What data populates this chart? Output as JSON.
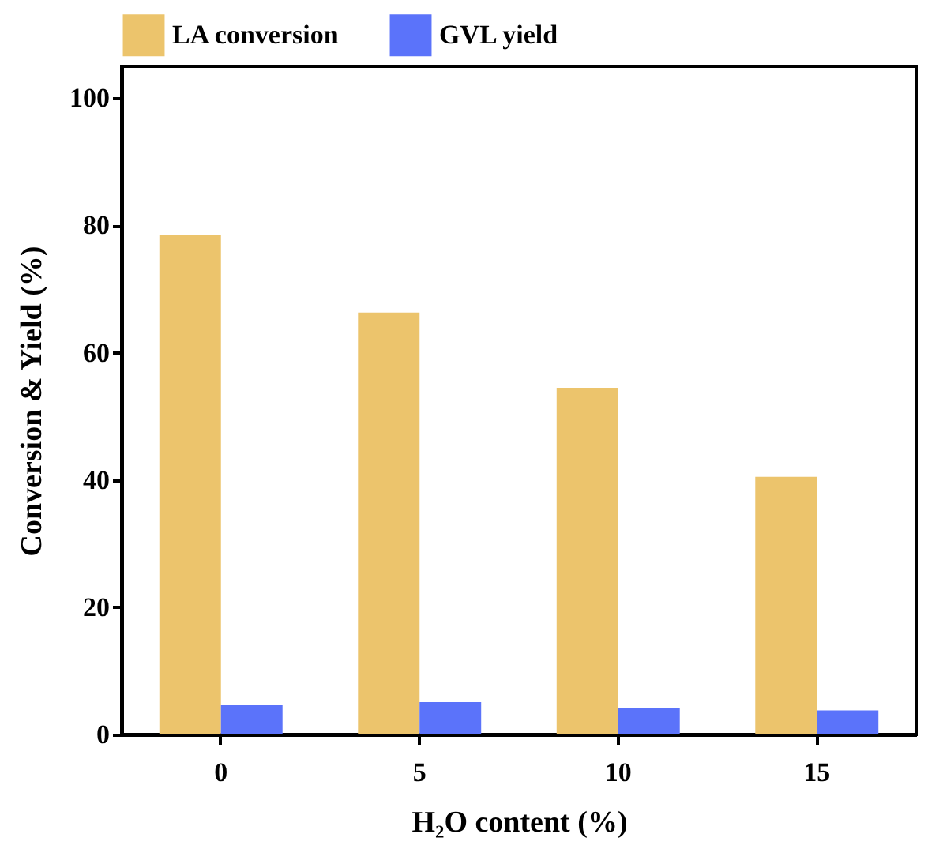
{
  "chart_data": {
    "type": "bar",
    "xlabel": "H₂O content (%)",
    "ylabel": "Conversion & Yield (%)",
    "categories": [
      "0",
      "5",
      "10",
      "15"
    ],
    "series": [
      {
        "name": "LA conversion",
        "color": "#ecc46c",
        "values": [
          78.5,
          66.3,
          54.5,
          40.5
        ]
      },
      {
        "name": "GVL yield",
        "color": "#5b73fa",
        "values": [
          4.6,
          5.1,
          4.1,
          3.8
        ]
      }
    ],
    "ylim": [
      0,
      105
    ],
    "yticks": [
      0,
      20,
      40,
      60,
      80,
      100
    ],
    "grid": false,
    "legend": "top"
  }
}
